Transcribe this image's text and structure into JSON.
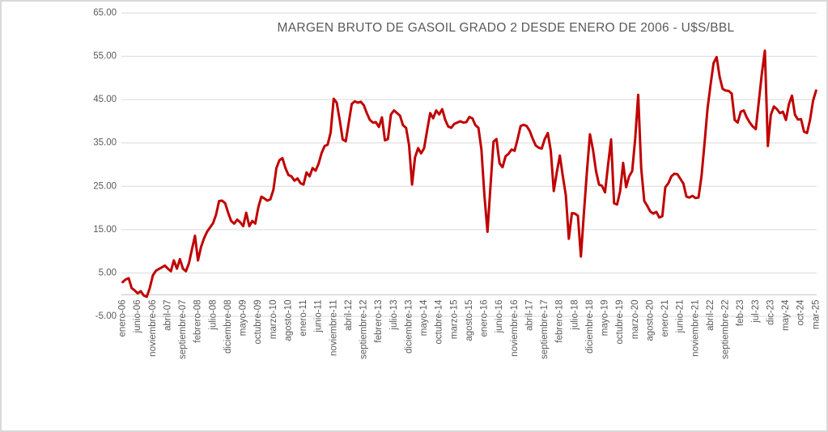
{
  "chart_data": {
    "type": "line",
    "title": "MARGEN BRUTO DE GASOIL GRADO 2 DESDE ENERO DE 2006 - U$S/BBL",
    "ylabel": "",
    "xlabel": "",
    "ylim": [
      -5,
      65
    ],
    "y_ticks": [
      65,
      55,
      45,
      35,
      25,
      15,
      5,
      -5
    ],
    "y_tick_labels": [
      "65.00",
      "55.00",
      "45.00",
      "35.00",
      "25.00",
      "15.00",
      "5.00",
      "-5.00"
    ],
    "x_axis_crossing_value": 0,
    "grid": "horizontal-only",
    "legend": "none",
    "x_tick_interval_months": 5,
    "x_tick_labels": [
      "enero-06",
      "junio-06",
      "noviembre-06",
      "abril-07",
      "septiembre-07",
      "febrero-08",
      "julio-08",
      "diciembre-08",
      "mayo-09",
      "octubre-09",
      "marzo-10",
      "agosto-10",
      "enero-11",
      "junio-11",
      "noviembre-11",
      "abril-12",
      "septiembre-12",
      "febrero-13",
      "julio-13",
      "diciembre-13",
      "mayo-14",
      "octubre-14",
      "marzo-15",
      "agosto-15",
      "enero-16",
      "junio-16",
      "noviembre-16",
      "abril-17",
      "septiembre-17",
      "febrero-18",
      "julio-18",
      "diciembre-18",
      "mayo-19",
      "octubre-19",
      "marzo-20",
      "agosto-20",
      "enero-21",
      "junio-21",
      "noviembre-21",
      "abril-22",
      "septiembre-22",
      "feb-23",
      "jul-23",
      "dic-23",
      "may-24",
      "oct-24",
      "mar-25"
    ],
    "series": {
      "color": "#C00000",
      "start_month": "enero-06",
      "months_per_point": 1,
      "values": [
        2.9,
        3.5,
        3.8,
        1.5,
        1.0,
        0.3,
        0.8,
        -0.2,
        -0.5,
        1.5,
        4.4,
        5.5,
        5.9,
        6.3,
        6.7,
        6.0,
        5.4,
        7.9,
        6.0,
        8.2,
        6.0,
        5.4,
        7.3,
        10.5,
        13.6,
        7.9,
        11.0,
        13.0,
        14.5,
        15.5,
        16.5,
        18.5,
        21.6,
        21.7,
        21.1,
        18.9,
        17.0,
        16.4,
        17.3,
        16.7,
        15.8,
        18.9,
        15.8,
        17.0,
        16.4,
        20.1,
        22.6,
        22.2,
        21.7,
        22.0,
        24.2,
        29.2,
        31.0,
        31.5,
        29.2,
        27.6,
        27.3,
        26.3,
        26.8,
        25.7,
        25.4,
        28.2,
        27.3,
        29.2,
        28.6,
        30.2,
        32.7,
        34.3,
        34.6,
        37.4,
        45.2,
        44.3,
        40.3,
        35.8,
        35.4,
        39.7,
        44.0,
        44.6,
        44.3,
        44.5,
        43.7,
        41.9,
        40.3,
        39.7,
        39.8,
        38.7,
        40.9,
        35.6,
        35.9,
        41.6,
        42.5,
        41.9,
        41.3,
        39.1,
        38.5,
        34.5,
        25.4,
        31.7,
        33.8,
        32.6,
        33.8,
        37.9,
        41.9,
        40.7,
        42.5,
        41.6,
        42.8,
        40.3,
        38.8,
        38.5,
        39.4,
        39.7,
        40.0,
        39.7,
        39.8,
        41.0,
        40.7,
        39.1,
        38.5,
        33.5,
        22.9,
        14.5,
        25.0,
        35.3,
        35.9,
        30.3,
        29.4,
        31.9,
        32.5,
        33.5,
        33.2,
        35.9,
        38.9,
        39.2,
        38.9,
        37.8,
        36.0,
        34.4,
        33.9,
        33.7,
        35.9,
        37.3,
        33.2,
        23.9,
        28.2,
        32.1,
        27.3,
        22.9,
        12.9,
        18.8,
        18.7,
        18.2,
        8.8,
        19.0,
        28.5,
        37.0,
        33.5,
        28.5,
        25.4,
        25.1,
        23.6,
        30.0,
        35.8,
        21.1,
        20.8,
        23.9,
        30.4,
        24.8,
        27.3,
        28.5,
        36.0,
        46.1,
        29.2,
        21.6,
        20.5,
        19.2,
        18.7,
        19.1,
        17.8,
        18.1,
        24.8,
        25.7,
        27.3,
        27.9,
        27.8,
        26.7,
        25.6,
        22.6,
        22.4,
        22.8,
        22.3,
        22.4,
        27.3,
        35.0,
        43.0,
        48.4,
        53.4,
        54.8,
        50.3,
        47.5,
        47.1,
        47.0,
        46.4,
        40.3,
        39.7,
        42.2,
        42.5,
        40.9,
        39.7,
        38.8,
        38.2,
        44.5,
        50.9,
        56.3,
        34.3,
        41.5,
        43.4,
        42.8,
        41.9,
        42.2,
        40.3,
        44.0,
        45.9,
        41.5,
        40.4,
        40.5,
        37.6,
        37.3,
        40.3,
        44.8,
        47.1
      ]
    }
  },
  "colors": {
    "line": "#C00000",
    "text": "#595959",
    "gridline": "#D9D9D9",
    "axis_line": "#BFBFBF",
    "background": "#FFFFFF",
    "frame_border": "#D9D9D9"
  }
}
